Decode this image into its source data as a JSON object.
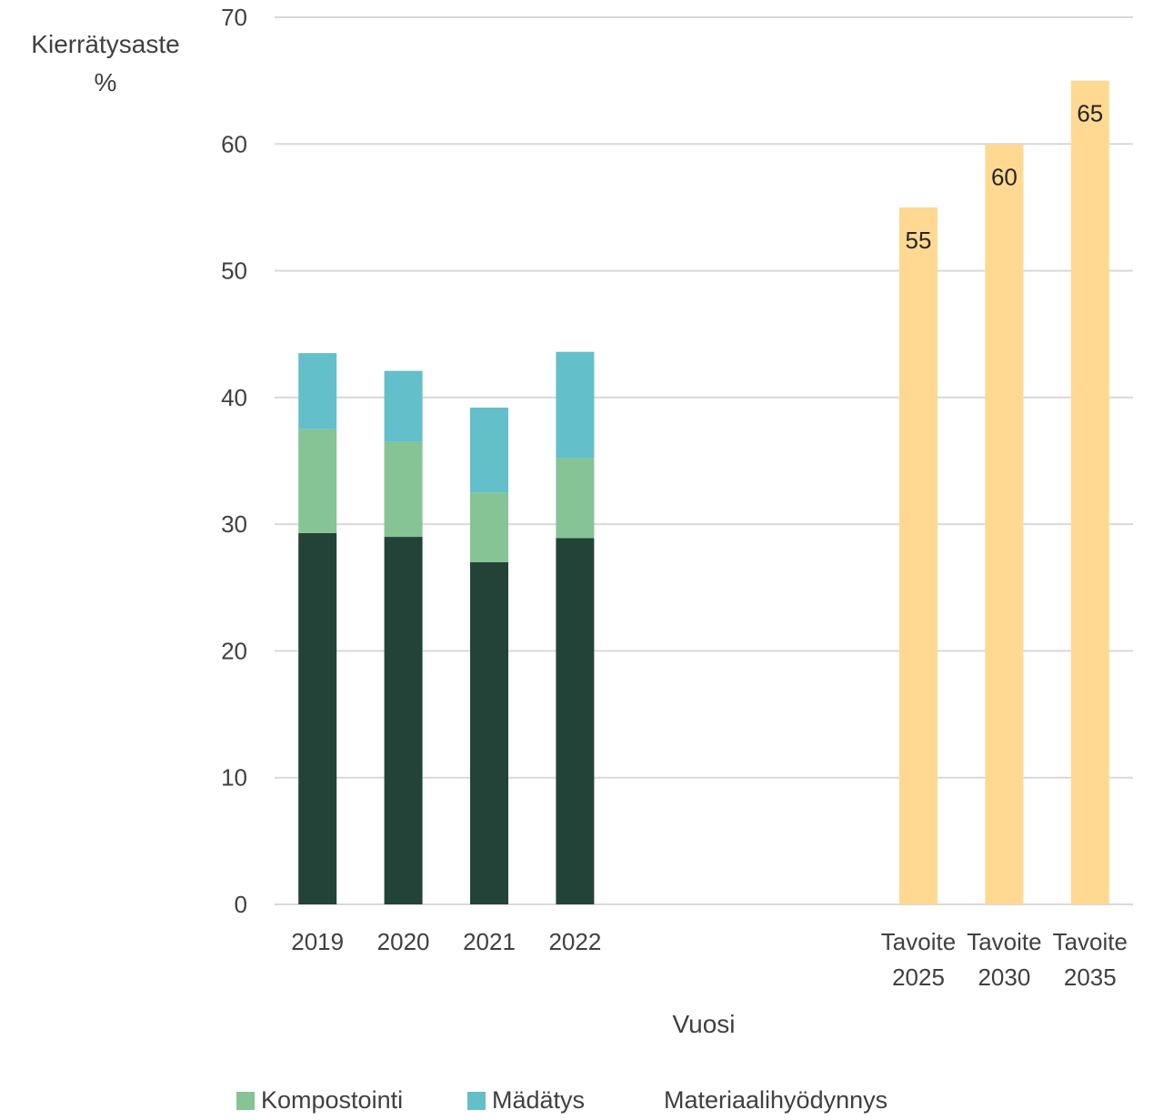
{
  "chart_data": {
    "type": "bar",
    "stacked": true,
    "categories": [
      [
        "2019"
      ],
      [
        "2020"
      ],
      [
        "2021"
      ],
      [
        "2022"
      ],
      [
        ""
      ],
      [
        ""
      ],
      [
        ""
      ],
      [
        "Tavoite",
        "2025"
      ],
      [
        "Tavoite",
        "2030"
      ],
      [
        "Tavoite",
        "2035"
      ]
    ],
    "series": [
      {
        "name": "",
        "color": "#234338",
        "values": [
          29.3,
          29.0,
          27.0,
          28.9,
          null,
          null,
          null,
          null,
          null,
          null
        ]
      },
      {
        "name": "Kompostointi",
        "color": "#86c395",
        "values": [
          8.2,
          7.5,
          5.5,
          6.3,
          null,
          null,
          null,
          null,
          null,
          null
        ]
      },
      {
        "name": "Mädätys",
        "color": "#63bfc9",
        "values": [
          6.0,
          5.6,
          6.7,
          8.4,
          null,
          null,
          null,
          null,
          null,
          null
        ]
      },
      {
        "name": "",
        "color": "#ffd992",
        "values": [
          null,
          null,
          null,
          null,
          null,
          null,
          null,
          55,
          60,
          65
        ],
        "data_labels": [
          "",
          "",
          "",
          "",
          "",
          "",
          "",
          "55",
          "60",
          "65"
        ]
      }
    ],
    "ylabel": [
      "Kierrätysaste",
      "%"
    ],
    "xlabel": "Vuosi",
    "ylim": [
      0,
      70
    ],
    "yticks": [
      0,
      10,
      20,
      30,
      40,
      50,
      60,
      70
    ],
    "grid": true,
    "legend": {
      "position": "bottom",
      "entries": [
        {
          "label": "Kompostointi",
          "color": "#86c395",
          "show_swatch": true
        },
        {
          "label": "Mädätys",
          "color": "#63bfc9",
          "show_swatch": true
        },
        {
          "label": "Materiaalihyödynnys",
          "color": "#234338",
          "show_swatch": false
        }
      ]
    }
  }
}
